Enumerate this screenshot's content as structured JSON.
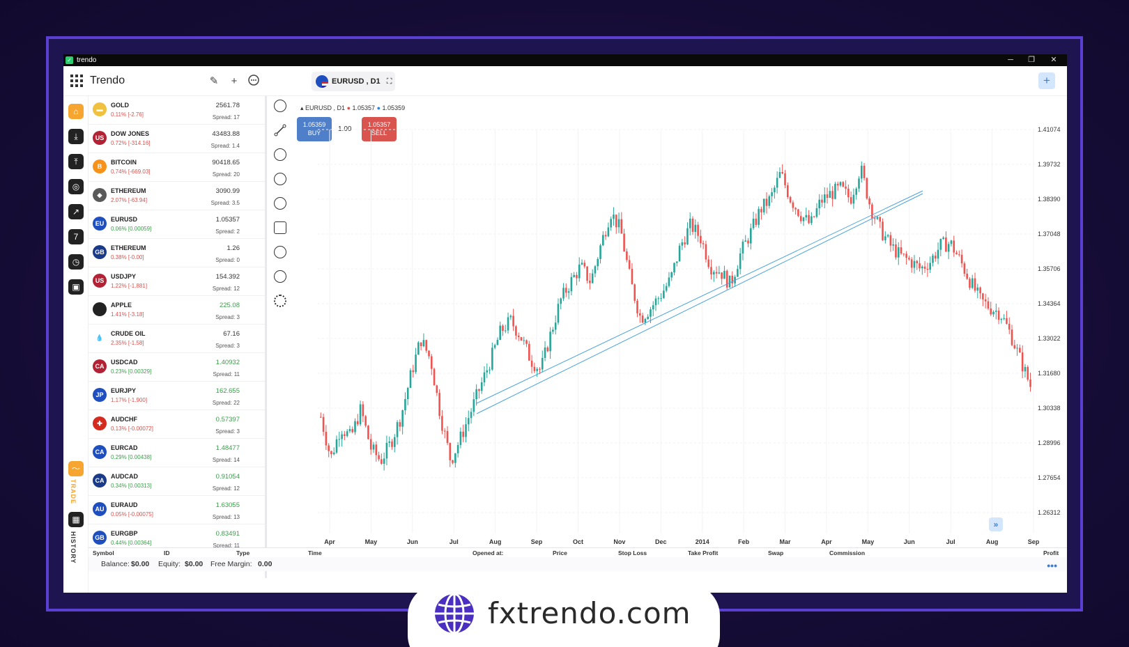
{
  "window": {
    "title": "trendo",
    "minimize": "─",
    "restore": "❐",
    "close": "✕"
  },
  "header": {
    "brand": "Trendo",
    "symbol_tab": "EURUSD , D1",
    "expand_icon": "⛶"
  },
  "watchlist": [
    {
      "name": "GOLD",
      "change": "0.11% [-2.76]",
      "price": "2561.78",
      "spread": "Spread: 17",
      "chg_color": "#d9534f",
      "price_color": "#333",
      "icon_bg": "#f0c040",
      "icon": "▬"
    },
    {
      "name": "DOW JONES",
      "change": "0.72% [-314.16]",
      "price": "43483.88",
      "spread": "Spread: 1.4",
      "chg_color": "#d9534f",
      "price_color": "#333",
      "icon_bg": "#b22234",
      "icon": "US"
    },
    {
      "name": "BITCOIN",
      "change": "0.74% [-669.03]",
      "price": "90418.65",
      "spread": "Spread: 20",
      "chg_color": "#d9534f",
      "price_color": "#333",
      "icon_bg": "#f7931a",
      "icon": "B"
    },
    {
      "name": "ETHEREUM",
      "change": "2.07% [-63.94]",
      "price": "3090.99",
      "spread": "Spread: 3.5",
      "chg_color": "#d9534f",
      "price_color": "#333",
      "icon_bg": "#5a5a5a",
      "icon": "◆"
    },
    {
      "name": "EURUSD",
      "change": "0.06% [0.00059]",
      "price": "1.05357",
      "spread": "Spread: 2",
      "chg_color": "#3a9e4a",
      "price_color": "#333",
      "icon_bg": "#1f4fbf",
      "icon": "EU"
    },
    {
      "name": "ETHEREUM",
      "change": "0.38% [-0.00]",
      "price": "1.26",
      "spread": "Spread: 0",
      "chg_color": "#d9534f",
      "price_color": "#333",
      "icon_bg": "#1a3a8a",
      "icon": "GB"
    },
    {
      "name": "USDJPY",
      "change": "1.22% [-1.881]",
      "price": "154.392",
      "spread": "Spread: 12",
      "chg_color": "#d9534f",
      "price_color": "#333",
      "icon_bg": "#b22234",
      "icon": "US"
    },
    {
      "name": "APPLE",
      "change": "1.41% [-3.18]",
      "price": "225.08",
      "spread": "Spread: 3",
      "chg_color": "#d9534f",
      "price_color": "#3a9e4a",
      "icon_bg": "#222",
      "icon": ""
    },
    {
      "name": "CRUDE OIL",
      "change": "2.35% [-1.58]",
      "price": "67.16",
      "spread": "Spread: 3",
      "chg_color": "#d9534f",
      "price_color": "#333",
      "icon_bg": "#fff",
      "icon": "💧"
    },
    {
      "name": "USDCAD",
      "change": "0.23% [0.00329]",
      "price": "1.40932",
      "spread": "Spread: 11",
      "chg_color": "#3a9e4a",
      "price_color": "#3a9e4a",
      "icon_bg": "#b22234",
      "icon": "CA"
    },
    {
      "name": "EURJPY",
      "change": "1.17% [-1.900]",
      "price": "162.655",
      "spread": "Spread: 22",
      "chg_color": "#d9534f",
      "price_color": "#3a9e4a",
      "icon_bg": "#1f4fbf",
      "icon": "JP"
    },
    {
      "name": "AUDCHF",
      "change": "0.13% [-0.00072]",
      "price": "0.57397",
      "spread": "Spread: 3",
      "chg_color": "#d9534f",
      "price_color": "#3a9e4a",
      "icon_bg": "#d52b1e",
      "icon": "✚"
    },
    {
      "name": "EURCAD",
      "change": "0.29% [0.00438]",
      "price": "1.48477",
      "spread": "Spread: 14",
      "chg_color": "#3a9e4a",
      "price_color": "#3a9e4a",
      "icon_bg": "#1f4fbf",
      "icon": "CA"
    },
    {
      "name": "AUDCAD",
      "change": "0.34% [0.00313]",
      "price": "0.91054",
      "spread": "Spread: 12",
      "chg_color": "#3a9e4a",
      "price_color": "#3a9e4a",
      "icon_bg": "#1a3a8a",
      "icon": "CA"
    },
    {
      "name": "EURAUD",
      "change": "0.05% [-0.00075]",
      "price": "1.63055",
      "spread": "Spread: 13",
      "chg_color": "#d9534f",
      "price_color": "#3a9e4a",
      "icon_bg": "#1f4fbf",
      "icon": "AU"
    },
    {
      "name": "EURGBP",
      "change": "0.44% [0.00364]",
      "price": "0.83491",
      "spread": "Spread: 11",
      "chg_color": "#3a9e4a",
      "price_color": "#3a9e4a",
      "icon_bg": "#1f4fbf",
      "icon": "GB"
    }
  ],
  "nav": {
    "trade_label": "TRADE",
    "history_label": "HISTORY"
  },
  "chart_header": {
    "symbol": "EURUSD , D1",
    "bid": "1.05357",
    "ask": "1.05359"
  },
  "trade": {
    "buy_price": "1.05359",
    "buy_label": "BUY",
    "sell_price": "1.05357",
    "sell_label": "SELL",
    "quantity": "1.00"
  },
  "chart_data": {
    "type": "candlestick",
    "y_ticks": [
      "1.41074",
      "1.39732",
      "1.38390",
      "1.37048",
      "1.35706",
      "1.34364",
      "1.33022",
      "1.31680",
      "1.30338",
      "1.28996",
      "1.27654",
      "1.26312"
    ],
    "x_ticks": [
      "Apr",
      "May",
      "Jun",
      "Jul",
      "Aug",
      "Sep",
      "Oct",
      "Nov",
      "Dec",
      "2014",
      "Feb",
      "Mar",
      "Apr",
      "May",
      "Jun",
      "Jul",
      "Aug",
      "Sep"
    ],
    "trend_path_closes": [
      1.3,
      1.284,
      1.296,
      1.292,
      1.303,
      1.288,
      1.283,
      1.29,
      1.3,
      1.316,
      1.33,
      1.322,
      1.3,
      1.283,
      1.292,
      1.302,
      1.312,
      1.322,
      1.333,
      1.337,
      1.331,
      1.322,
      1.318,
      1.332,
      1.345,
      1.352,
      1.358,
      1.352,
      1.366,
      1.379,
      1.372,
      1.352,
      1.338,
      1.342,
      1.347,
      1.353,
      1.366,
      1.374,
      1.369,
      1.358,
      1.356,
      1.351,
      1.363,
      1.371,
      1.38,
      1.384,
      1.394,
      1.384,
      1.378,
      1.374,
      1.383,
      1.386,
      1.388,
      1.384,
      1.396,
      1.381,
      1.372,
      1.366,
      1.362,
      1.36,
      1.357,
      1.36,
      1.366,
      1.367,
      1.36,
      1.352,
      1.345,
      1.342,
      1.34,
      1.332,
      1.322,
      1.312
    ],
    "colors": {
      "up": "#26a69a",
      "down": "#ef5350",
      "trendline": "#4aa3df"
    }
  },
  "positions_header": {
    "symbol": "Symbol",
    "id": "ID",
    "type": "Type",
    "time": "Time",
    "opened_at": "Opened at:",
    "price": "Price",
    "stop_loss": "Stop Loss",
    "take_profit": "Take Profit",
    "swap": "Swap",
    "commission": "Commission",
    "profit": "Profit"
  },
  "account": {
    "balance_label": "Balance:",
    "balance": "$0.00",
    "equity_label": "Equity:",
    "equity": "$0.00",
    "free_margin_label": "Free Margin:",
    "free_margin": "0.00"
  },
  "promo": {
    "domain": "fxtrendo.com"
  }
}
